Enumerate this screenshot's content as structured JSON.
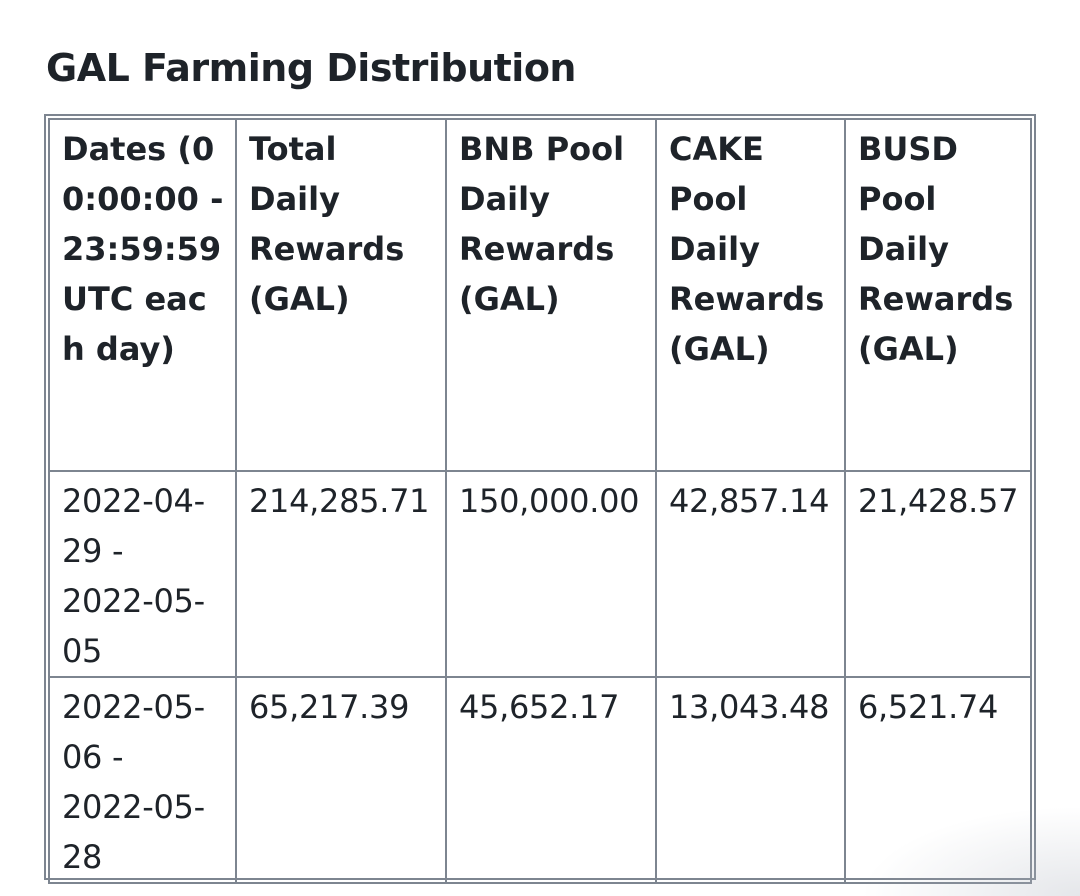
{
  "page": {
    "title": "GAL Farming Distribution"
  },
  "table": {
    "headers": [
      "Dates (00:00:00 - 23:59:59 UTC each day)",
      "Total Daily Rewards (GAL)",
      "BNB Pool Daily Rewards (GAL)",
      "CAKE Pool Daily Rewards (GAL)",
      "BUSD Pool Daily Rewards (GAL)"
    ],
    "rows": [
      {
        "dates_lines": [
          "2022-04-",
          "29 -",
          "2022-05-",
          "05"
        ],
        "total": "214,285.71",
        "bnb": "150,000.00",
        "cake": "42,857.14",
        "busd": "21,428.57"
      },
      {
        "dates_lines": [
          "2022-05-",
          "06 -",
          "2022-05-",
          "28"
        ],
        "total": "65,217.39",
        "bnb": "45,652.17",
        "cake": "13,043.48",
        "busd": "6,521.74"
      }
    ]
  },
  "colors": {
    "text": "#1e2329",
    "border": "#7d8590",
    "background": "#ffffff"
  }
}
